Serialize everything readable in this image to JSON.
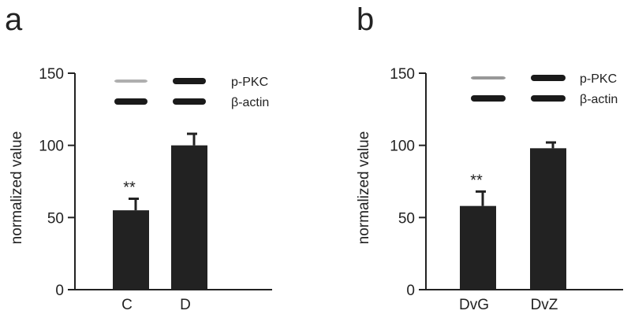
{
  "chart_data": [
    {
      "panel": "a",
      "type": "bar",
      "categories": [
        "C",
        "D"
      ],
      "values": [
        55,
        100
      ],
      "errors": [
        8,
        8
      ],
      "significance": [
        "**",
        ""
      ],
      "ylabel": "normalized value",
      "ylim": [
        0,
        150
      ],
      "yticks": [
        0,
        50,
        100,
        150
      ],
      "blot_labels": [
        "p-PKC",
        "β-actin"
      ],
      "blot_intensity": {
        "p-PKC": [
          0.35,
          1.0
        ],
        "β-actin": [
          1.0,
          1.0
        ]
      }
    },
    {
      "panel": "b",
      "type": "bar",
      "categories": [
        "DvG",
        "DvZ"
      ],
      "values": [
        58,
        98
      ],
      "errors": [
        10,
        4
      ],
      "significance": [
        "**",
        ""
      ],
      "ylabel": "normalized value",
      "ylim": [
        0,
        150
      ],
      "yticks": [
        0,
        50,
        100,
        150
      ],
      "blot_labels": [
        "p-PKC",
        "β-actin"
      ],
      "blot_intensity": {
        "p-PKC": [
          0.45,
          1.0
        ],
        "β-actin": [
          1.0,
          1.0
        ]
      }
    }
  ],
  "colors": {
    "bar": "#222222",
    "axis": "#222222",
    "band": "#1a1a1a"
  }
}
